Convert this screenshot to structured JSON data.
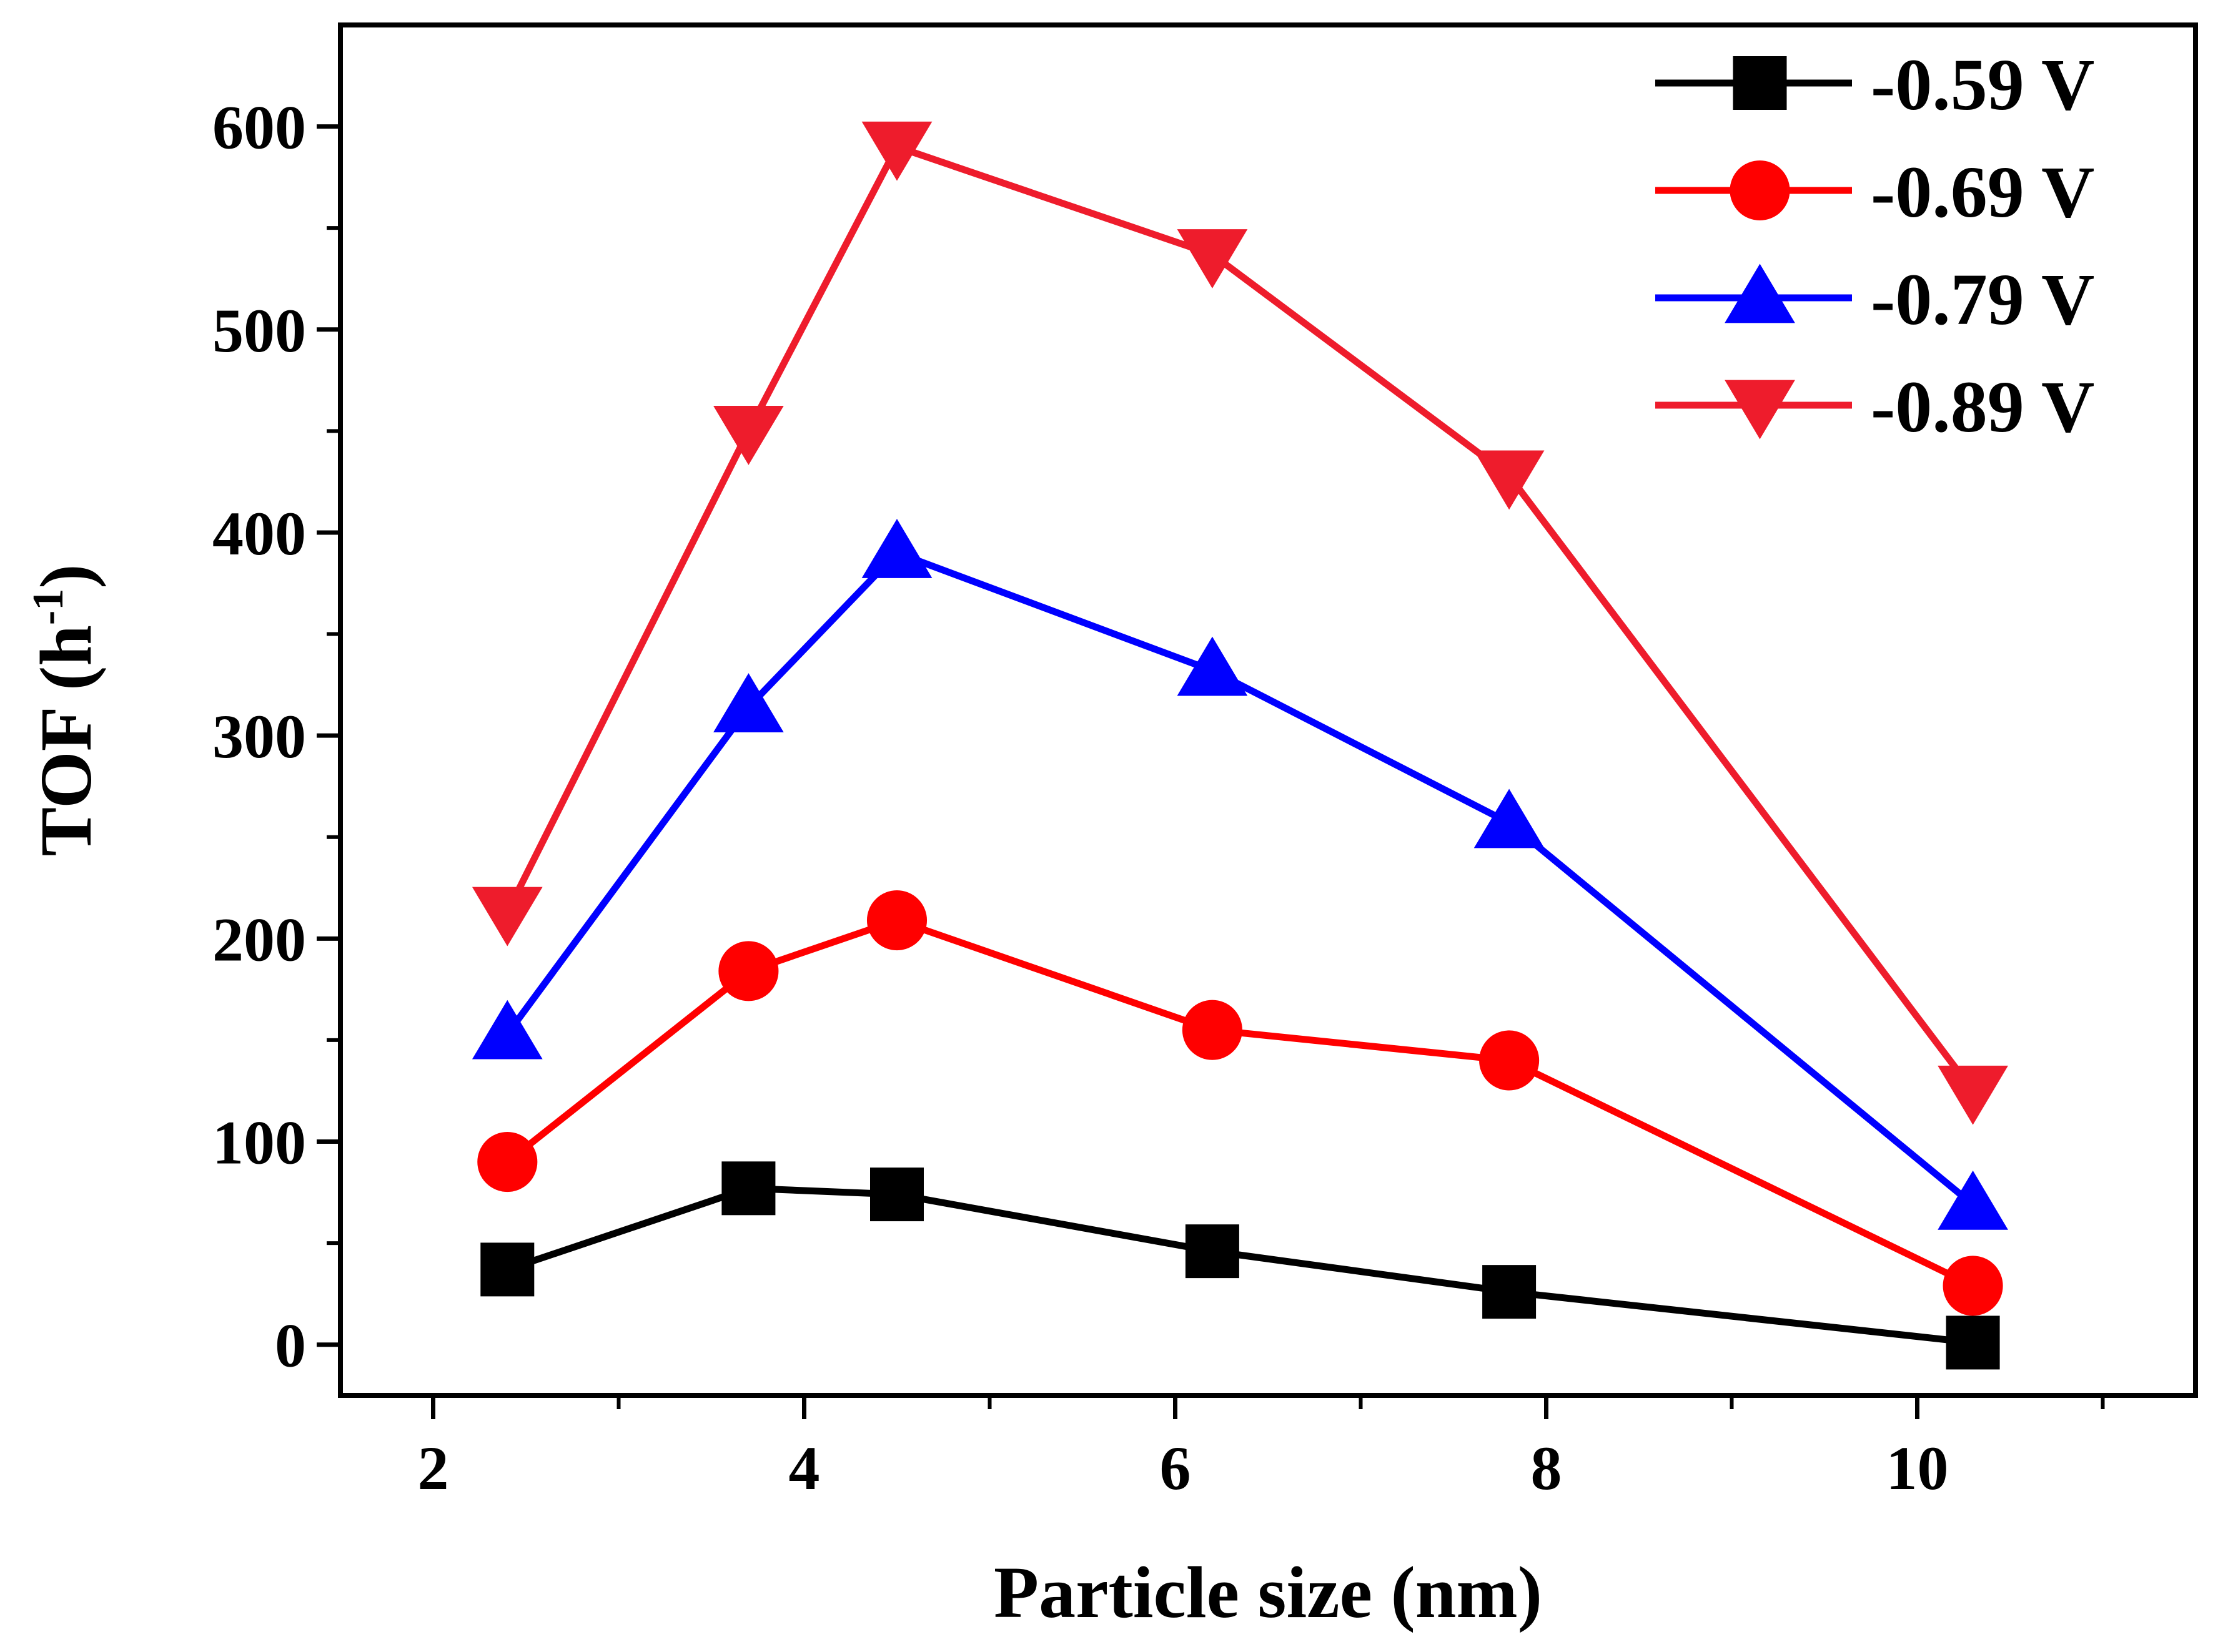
{
  "chart_data": {
    "type": "line",
    "title": "",
    "xlabel": "Particle size (nm)",
    "ylabel_main": "TOF (h",
    "ylabel_sup": "-1",
    "ylabel_close": ")",
    "xlim": [
      1.5,
      11.5
    ],
    "ylim": [
      -25,
      650
    ],
    "xticks": [
      2,
      4,
      6,
      8,
      10
    ],
    "xtick_labels": [
      "2",
      "4",
      "6",
      "8",
      "10"
    ],
    "yticks": [
      0,
      100,
      200,
      300,
      400,
      500,
      600
    ],
    "ytick_labels": [
      "0",
      "100",
      "200",
      "300",
      "400",
      "500",
      "600"
    ],
    "x": [
      2.4,
      3.7,
      4.5,
      6.2,
      7.8,
      10.3
    ],
    "series": [
      {
        "name": "-0.59 V",
        "color": "#000000",
        "marker": "square",
        "values": [
          37,
          77,
          74,
          46,
          26,
          1
        ]
      },
      {
        "name": "-0.69 V",
        "color": "#ff0000",
        "marker": "circle",
        "values": [
          90,
          184,
          209,
          155,
          140,
          29
        ]
      },
      {
        "name": "-0.79 V",
        "color": "#0000ff",
        "marker": "triangle-up",
        "values": [
          153,
          314,
          390,
          332,
          257,
          69
        ]
      },
      {
        "name": "-0.89 V",
        "color": "#ee1c2c",
        "marker": "triangle-down",
        "values": [
          213,
          450,
          590,
          537,
          428,
          125
        ]
      }
    ],
    "legend_position": "top-right",
    "grid": false
  }
}
